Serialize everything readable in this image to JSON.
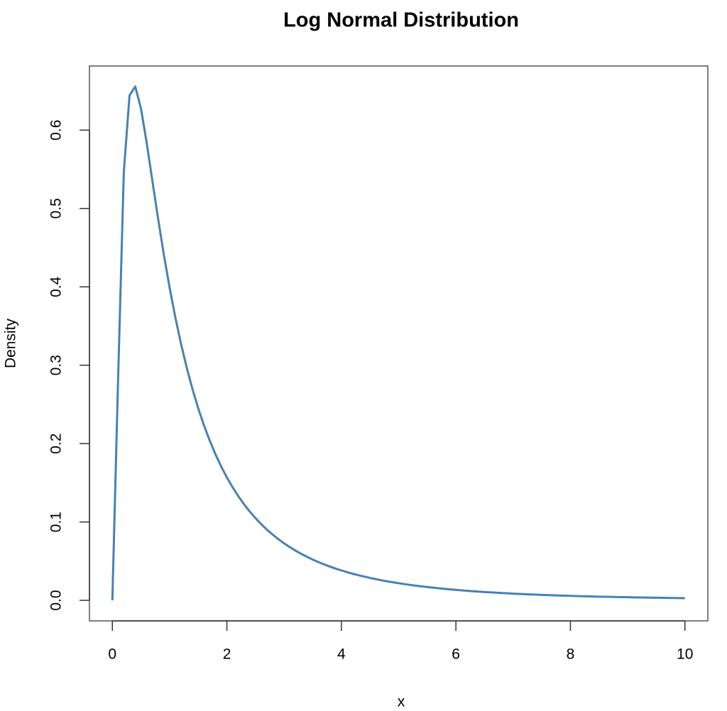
{
  "chart_data": {
    "type": "line",
    "title": "Log Normal Distribution",
    "x_label": "x",
    "y_label": "Density",
    "x": [
      0,
      0.1,
      0.2,
      0.3,
      0.4,
      0.5,
      0.6,
      0.7,
      0.8,
      0.9,
      1,
      1.1,
      1.2,
      1.3,
      1.4,
      1.5,
      1.6,
      1.7,
      1.8,
      1.9,
      2,
      2.1,
      2.2,
      2.3,
      2.4,
      2.5,
      2.6,
      2.7,
      2.8,
      2.9,
      3,
      3.1,
      3.2,
      3.3,
      3.4,
      3.5,
      3.6,
      3.7,
      3.8,
      3.9,
      4,
      4.1,
      4.2,
      4.3,
      4.4,
      4.5,
      4.6,
      4.7,
      4.8,
      4.9,
      5,
      5.1,
      5.2,
      5.3,
      5.4,
      5.5,
      5.6,
      5.7,
      5.8,
      5.9,
      6,
      6.1,
      6.2,
      6.3,
      6.4,
      6.5,
      6.6,
      6.7,
      6.8,
      6.9,
      7,
      7.1,
      7.2,
      7.3,
      7.4,
      7.5,
      7.6,
      7.7,
      7.8,
      7.9,
      8,
      8.1,
      8.2,
      8.3,
      8.4,
      8.5,
      8.6,
      8.7,
      8.8,
      8.9,
      9,
      9.1,
      9.2,
      9.3,
      9.4,
      9.5,
      9.6,
      9.7,
      9.8,
      9.9,
      10
    ],
    "series": [
      {
        "color": "#4682b4",
        "values": [
          0,
          0.2816,
          0.5463,
          0.6442,
          0.6556,
          0.6275,
          0.5836,
          0.5348,
          0.4864,
          0.4408,
          0.3989,
          0.361,
          0.327,
          0.2965,
          0.2693,
          0.245,
          0.2233,
          0.2039,
          0.1865,
          0.1709,
          0.1569,
          0.1443,
          0.1329,
          0.1226,
          0.1133,
          0.1049,
          0.0972,
          0.0902,
          0.0839,
          0.078,
          0.0727,
          0.0679,
          0.0634,
          0.0593,
          0.0555,
          0.052,
          0.0488,
          0.0458,
          0.0431,
          0.0405,
          0.0382,
          0.036,
          0.0339,
          0.032,
          0.0303,
          0.0286,
          0.0271,
          0.0256,
          0.0243,
          0.023,
          0.0219,
          0.0207,
          0.0197,
          0.0187,
          0.0178,
          0.017,
          0.0162,
          0.0154,
          0.0147,
          0.014,
          0.0134,
          0.0127,
          0.0122,
          0.0116,
          0.0111,
          0.0106,
          0.0102,
          0.00975,
          0.00934,
          0.00895,
          0.00858,
          0.00823,
          0.00789,
          0.00758,
          0.00727,
          0.00699,
          0.00671,
          0.00645,
          0.0062,
          0.00596,
          0.00574,
          0.00552,
          0.00532,
          0.00512,
          0.00493,
          0.00475,
          0.00458,
          0.00442,
          0.00426,
          0.00411,
          0.00397,
          0.00383,
          0.0037,
          0.00357,
          0.00345,
          0.00333,
          0.00322,
          0.00311,
          0.00301,
          0.00291,
          0.00282
        ]
      }
    ],
    "xlim": [
      -0.4,
      10.4
    ],
    "ylim": [
      -0.0262,
      0.6818
    ],
    "xticks": [
      0,
      2,
      4,
      6,
      8,
      10
    ],
    "yticks": [
      {
        "value": 0,
        "label": "0.0"
      },
      0.1,
      0.2,
      0.3,
      0.4,
      0.5,
      0.6
    ],
    "grid": false
  }
}
